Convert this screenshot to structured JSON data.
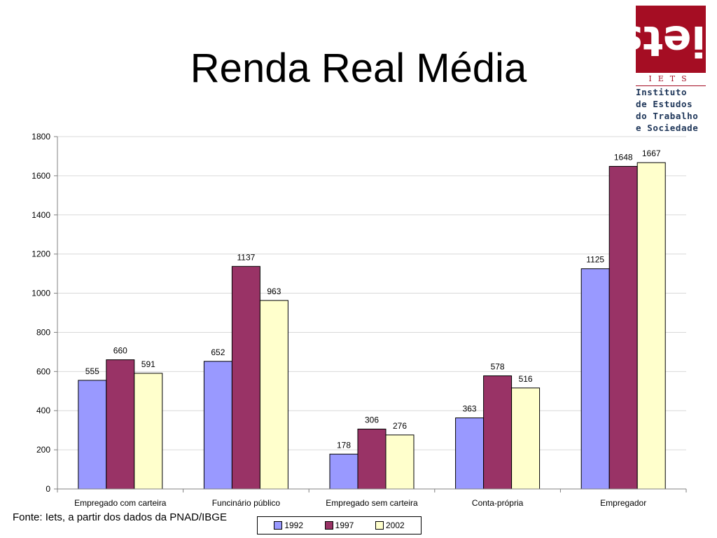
{
  "slide": {
    "title": "Renda Real Média",
    "source": "Fonte: Iets, a partir dos dados da PNAD/IBGE"
  },
  "logo": {
    "mark": "iets",
    "abbr": "IETS",
    "lines": [
      "Instituto",
      "de Estudos",
      "do Trabalho",
      "e Sociedade"
    ]
  },
  "colors": {
    "s1992": "#9999ff",
    "s1997": "#993366",
    "s2002": "#ffffcc",
    "logo_red": "#a50d23",
    "logo_blue": "#1d3558"
  },
  "chart_data": {
    "type": "bar",
    "title": "",
    "xlabel": "",
    "ylabel": "",
    "categories": [
      "Empregado com carteira",
      "Funcinário público",
      "Empregado sem carteira",
      "Conta-própria",
      "Empregador"
    ],
    "series": [
      {
        "name": "1992",
        "values": [
          555,
          652,
          178,
          363,
          1125
        ],
        "color": "#9999ff"
      },
      {
        "name": "1997",
        "values": [
          660,
          1137,
          306,
          578,
          1648
        ],
        "color": "#993366"
      },
      {
        "name": "2002",
        "values": [
          591,
          963,
          276,
          516,
          1667
        ],
        "color": "#ffffcc"
      }
    ],
    "ylim": [
      0,
      1800
    ],
    "yticks": [
      0,
      200,
      400,
      600,
      800,
      1000,
      1200,
      1400,
      1600,
      1800
    ],
    "grid": true,
    "legend": "bottom"
  }
}
